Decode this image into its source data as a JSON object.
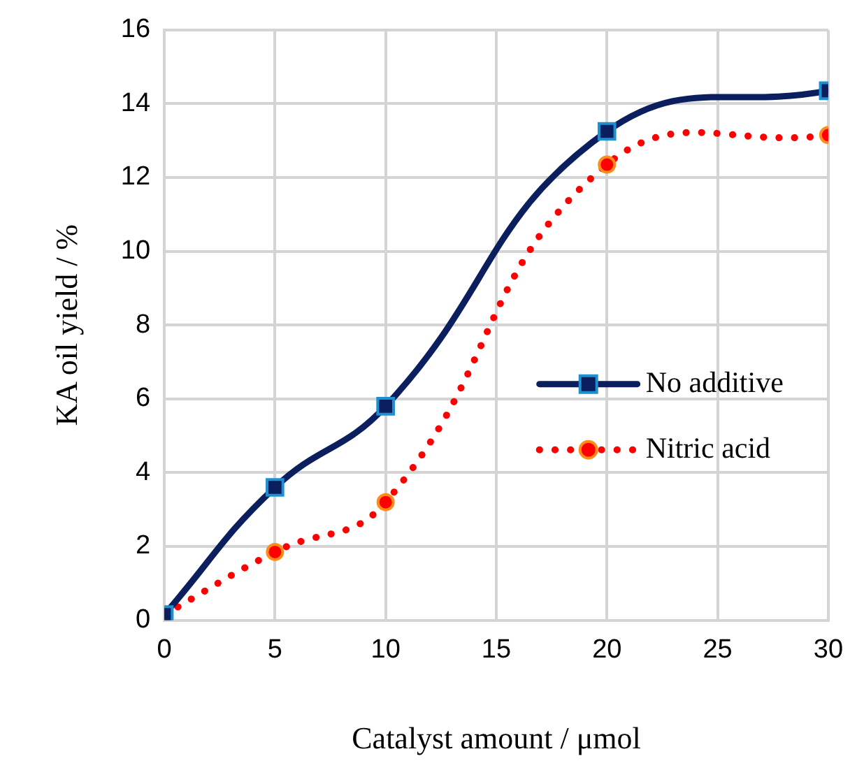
{
  "chart_data": {
    "type": "line",
    "xlabel": "Catalyst amount / μmol",
    "ylabel": "KA oil yield / %",
    "x": [
      0,
      5,
      10,
      20,
      30
    ],
    "series": [
      {
        "name": "No additive",
        "color": "#0b1f5e",
        "marker": "square",
        "line_style": "solid",
        "values": [
          0.15,
          3.6,
          5.8,
          13.25,
          14.35
        ]
      },
      {
        "name": "Nitric acid",
        "color": "#ff0000",
        "marker": "circle",
        "line_style": "dotted",
        "values": [
          0.15,
          1.85,
          3.2,
          12.35,
          13.15
        ]
      }
    ],
    "xlim": [
      0,
      30
    ],
    "xticks": [
      0,
      5,
      10,
      15,
      20,
      25,
      30
    ],
    "ylim": [
      0,
      16
    ],
    "yticks": [
      0,
      2,
      4,
      6,
      8,
      10,
      12,
      14,
      16
    ],
    "grid": true,
    "legend": "right"
  }
}
